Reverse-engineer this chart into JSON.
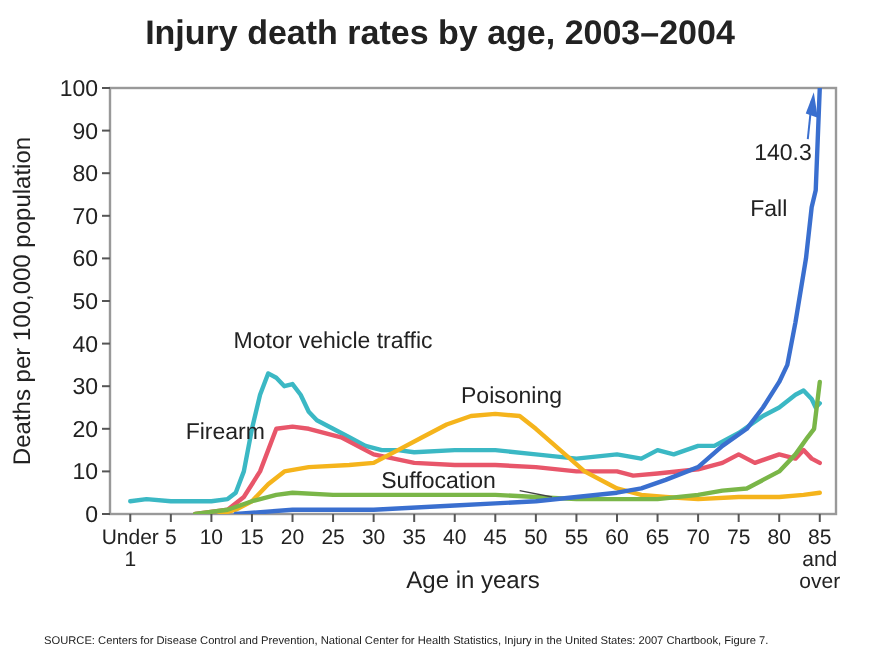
{
  "chart_data": {
    "type": "line",
    "title": "Injury death rates by age, 2003–2004",
    "xlabel": "Age in years",
    "ylabel": "Deaths per 100,000 population",
    "xlim": [
      -2.5,
      87
    ],
    "xticks": [
      {
        "value": 0,
        "label": "Under 1"
      },
      5,
      10,
      15,
      20,
      25,
      30,
      35,
      40,
      45,
      50,
      55,
      60,
      65,
      70,
      75,
      80,
      {
        "value": 85,
        "label": "85 and over"
      }
    ],
    "ylim": [
      0,
      100
    ],
    "yticks": [
      0,
      10,
      20,
      30,
      40,
      50,
      60,
      70,
      80,
      90,
      100
    ],
    "grid": false,
    "marker": "none",
    "line_style": "solid",
    "series": [
      {
        "name": "Motor vehicle traffic",
        "color": "#3bb8c4",
        "x": [
          0,
          2,
          5,
          8,
          10,
          12,
          13,
          14,
          15,
          16,
          17,
          18,
          19,
          20,
          21,
          22,
          23,
          25,
          27,
          29,
          31,
          33,
          35,
          40,
          45,
          50,
          55,
          60,
          63,
          65,
          67,
          70,
          72,
          75,
          78,
          80,
          82,
          83,
          84,
          84.5,
          85
        ],
        "values": [
          3,
          3.5,
          3,
          3,
          3,
          3.5,
          5,
          10,
          20,
          28,
          33,
          32,
          30,
          30.5,
          28,
          24,
          22,
          20,
          18,
          16,
          15,
          15,
          14.5,
          15,
          15,
          14,
          13,
          14,
          13,
          15,
          14,
          16,
          16,
          19,
          23,
          25,
          28,
          29,
          27,
          25,
          26
        ]
      },
      {
        "name": "Firearm",
        "color": "#e8566a",
        "x": [
          8,
          12,
          14,
          16,
          17,
          18,
          20,
          22,
          24,
          26,
          28,
          30,
          35,
          40,
          45,
          50,
          55,
          60,
          62,
          65,
          70,
          73,
          75,
          77,
          80,
          82,
          83,
          84,
          85
        ],
        "values": [
          0,
          1,
          4,
          10,
          15,
          20,
          20.5,
          20,
          19,
          18,
          16,
          14,
          12,
          11.5,
          11.5,
          11,
          10,
          10,
          9,
          9.5,
          10.5,
          12,
          14,
          12,
          14,
          13,
          15,
          13,
          12
        ]
      },
      {
        "name": "Poisoning",
        "color": "#f5b41c",
        "x": [
          11,
          13,
          15,
          17,
          19,
          22,
          27,
          30,
          33,
          36,
          39,
          42,
          45,
          48,
          50,
          53,
          56,
          60,
          63,
          66,
          70,
          75,
          80,
          83,
          85
        ],
        "values": [
          0,
          1,
          3,
          7,
          10,
          11,
          11.5,
          12,
          15,
          18,
          21,
          23,
          23.5,
          23,
          20,
          15,
          10,
          6,
          4.5,
          4,
          3.5,
          4,
          4,
          4.5,
          5
        ]
      },
      {
        "name": "Suffocation",
        "color": "#7ab648",
        "x": [
          8,
          12,
          15,
          18,
          20,
          25,
          30,
          40,
          45,
          50,
          55,
          60,
          65,
          70,
          73,
          76,
          78,
          80,
          82,
          83.5,
          84.3,
          85
        ],
        "values": [
          0,
          1,
          3,
          4.5,
          5,
          4.5,
          4.5,
          4.5,
          4.5,
          4,
          3.5,
          3.5,
          3.5,
          4.5,
          5.5,
          6,
          8,
          10,
          14,
          18,
          20,
          31
        ]
      },
      {
        "name": "Fall",
        "color": "#3a6fcf",
        "x": [
          13,
          20,
          30,
          40,
          45,
          50,
          55,
          60,
          63,
          66,
          70,
          73,
          76,
          78,
          80,
          81,
          82,
          83.3,
          84,
          84.5,
          85
        ],
        "values": [
          0,
          1,
          1,
          2,
          2.5,
          3,
          4,
          5,
          6,
          8,
          11,
          16,
          20,
          25,
          31,
          35,
          45,
          60,
          72,
          76,
          100
        ]
      }
    ],
    "annotations": [
      "140.3",
      "SOURCE: Centers for Disease Control and Prevention, National Center for Health Statistics, Injury in the United States: 2007 Chartbook, Figure 7."
    ]
  }
}
